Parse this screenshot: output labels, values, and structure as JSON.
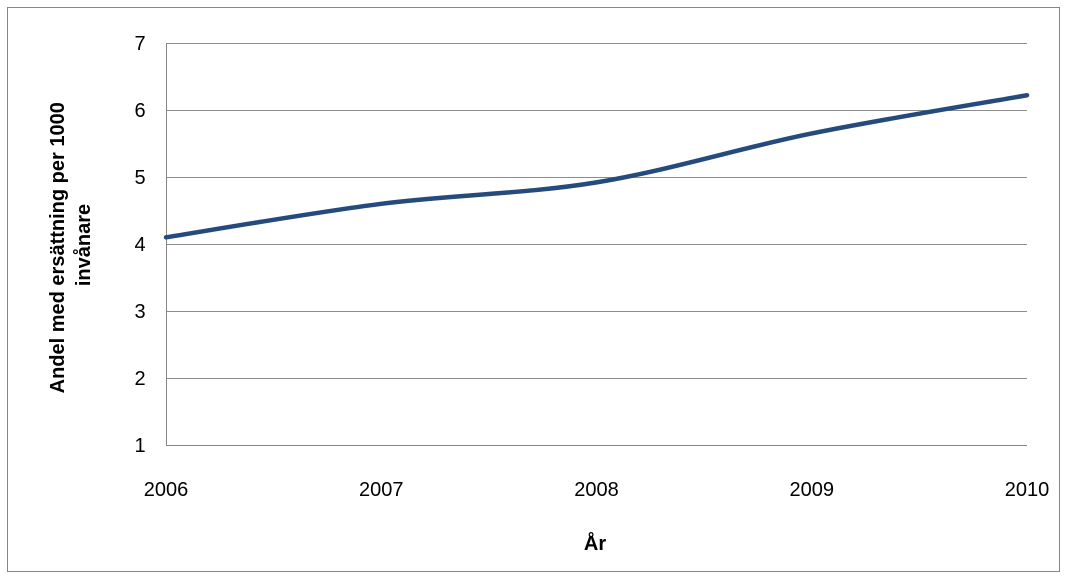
{
  "chart_data": {
    "type": "line",
    "title": "",
    "xlabel": "År",
    "ylabel_lines": [
      "Andel med ersättning per 1000",
      "invånare"
    ],
    "x": [
      "2006",
      "2007",
      "2008",
      "2009",
      "2010"
    ],
    "series": [
      {
        "values": [
          4.1,
          4.6,
          4.92,
          5.65,
          6.22
        ],
        "color": "#254A7C"
      }
    ],
    "ylim": [
      1,
      7
    ],
    "yticks": [
      "1",
      "2",
      "3",
      "4",
      "5",
      "6",
      "7"
    ],
    "grid": true,
    "gridline_color": "#8C8C8C",
    "axis_color": "#868686",
    "legend": "none",
    "smooth": true
  }
}
